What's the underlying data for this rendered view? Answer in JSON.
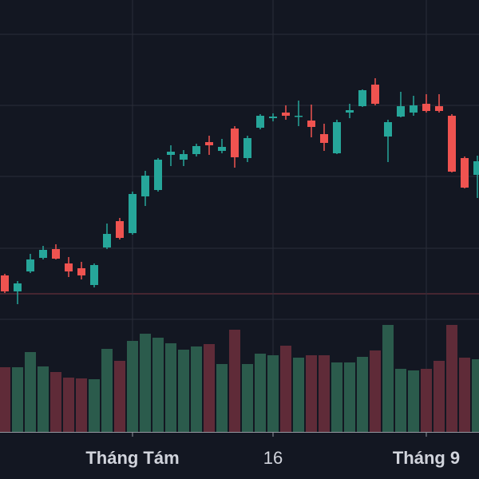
{
  "chart_data": {
    "type": "candlestick",
    "categories": [
      null,
      null,
      null,
      null,
      null,
      null,
      null,
      null,
      null,
      null,
      "Tháng Tám",
      null,
      null,
      null,
      null,
      null,
      null,
      null,
      null,
      null,
      null,
      "16",
      null,
      null,
      null,
      null,
      null,
      null,
      null,
      null,
      null,
      null,
      null,
      "Tháng 9",
      null,
      null,
      null,
      null
    ],
    "open": [
      255,
      235,
      260,
      277,
      288,
      270,
      264,
      243,
      290,
      323,
      308,
      354,
      362,
      406,
      400,
      407,
      422,
      411,
      439,
      402,
      440,
      452,
      459,
      454,
      449,
      432,
      408,
      459,
      467,
      494,
      429,
      454,
      459,
      470,
      467,
      455,
      402,
      381
    ],
    "high": [
      257,
      248,
      282,
      292,
      294,
      278,
      272,
      270,
      320,
      327,
      360,
      386,
      402,
      418,
      412,
      420,
      430,
      426,
      442,
      430,
      457,
      458,
      468,
      474,
      469,
      445,
      450,
      470,
      488,
      502,
      450,
      485,
      480,
      482,
      482,
      457,
      404,
      405
    ],
    "low": [
      233,
      219,
      258,
      275,
      275,
      253,
      250,
      240,
      288,
      300,
      306,
      342,
      360,
      392,
      392,
      404,
      406,
      408,
      390,
      397,
      438,
      448,
      450,
      442,
      428,
      411,
      407,
      452,
      466,
      468,
      397,
      453,
      455,
      459,
      459,
      384,
      364,
      352
    ],
    "close": [
      235,
      245,
      275,
      287,
      276,
      260,
      255,
      268,
      307,
      302,
      357,
      380,
      400,
      410,
      407,
      417,
      418,
      416,
      403,
      427,
      455,
      454,
      455,
      455,
      441,
      421,
      447,
      462,
      487,
      470,
      447,
      467,
      468,
      461,
      461,
      385,
      365,
      398
    ],
    "volume": [
      81,
      81,
      100,
      82,
      75,
      68,
      67,
      66,
      104,
      89,
      114,
      123,
      118,
      111,
      103,
      107,
      110,
      85,
      128,
      85,
      98,
      96,
      108,
      93,
      96,
      96,
      87,
      87,
      94,
      102,
      134,
      79,
      77,
      79,
      89,
      134,
      93,
      91
    ],
    "ylim": [
      59,
      600
    ],
    "volume_ylim": [
      0,
      541
    ],
    "up_color": "#26a69a",
    "down_color": "#ef5350",
    "volume_up_color": "#2b5b4c",
    "volume_down_color": "#5f2b38",
    "grid": true
  }
}
